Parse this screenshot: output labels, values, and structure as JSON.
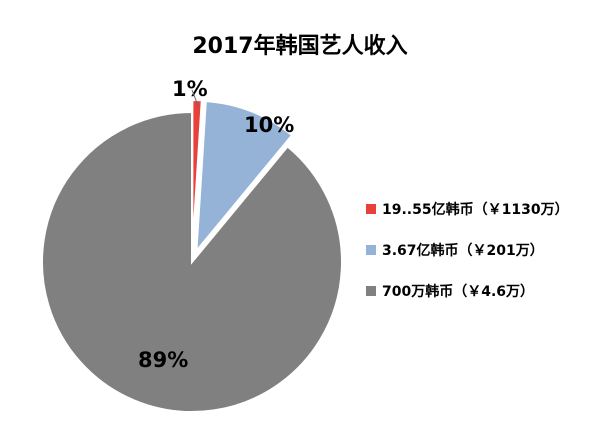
{
  "chart_data": {
    "type": "pie",
    "title": "2017年韩国艺人收入",
    "legend_position": "right",
    "slices": [
      {
        "label": "19..55亿韩币（￥1130万）",
        "value": 1,
        "data_label": "1%",
        "color": "#e8403a",
        "exploded": true
      },
      {
        "label": "3.67亿韩币（￥201万）",
        "value": 10,
        "data_label": "10%",
        "color": "#94b3d7",
        "exploded": true
      },
      {
        "label": "700万韩币（￥4.6万）",
        "value": 89,
        "data_label": "89%",
        "color": "#808080",
        "exploded": false
      }
    ]
  }
}
